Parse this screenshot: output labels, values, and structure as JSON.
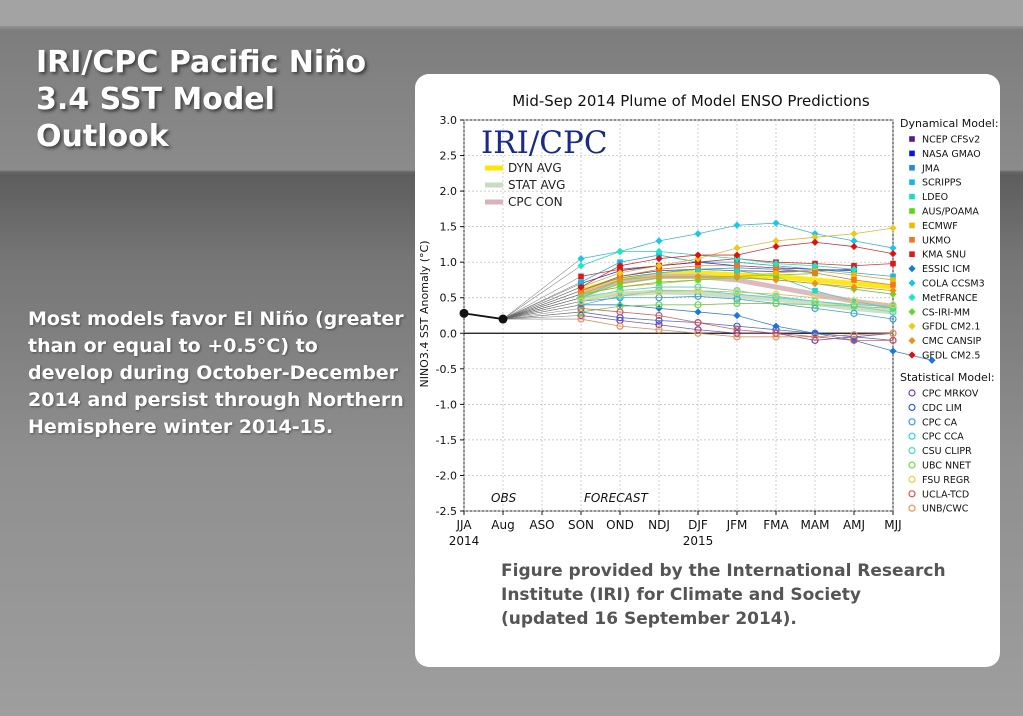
{
  "slide": {
    "title": "IRI/CPC Pacific Niño\n3.4 SST Model Outlook",
    "body": "Most models favor El Niño (greater than or equal to +0.5°C) to develop during October-December 2014 and persist through Northern Hemisphere winter 2014-15.",
    "caption": "Figure provided by the International Research\nInstitute (IRI) for Climate and Society\n(updated 16 September 2014)."
  },
  "chart_data": {
    "type": "line",
    "title": "Mid-Sep 2014 Plume of Model ENSO Predictions",
    "xlabel": "",
    "ylabel": "NINO3.4 SST Anomaly (°C)",
    "ylim": [
      -2.5,
      3.0
    ],
    "yticks": [
      "3.0",
      "2.5",
      "2.0",
      "1.5",
      "1.0",
      "0.5",
      "0.0",
      "-0.5",
      "-1.0",
      "-1.5",
      "-2.0",
      "-2.5"
    ],
    "categories": [
      "JJA",
      "Aug",
      "ASO",
      "SON",
      "OND",
      "NDJ",
      "DJF",
      "JFM",
      "FMA",
      "MAM",
      "AMJ",
      "MJJ"
    ],
    "year_labels": [
      {
        "category": "JJA",
        "label": "2014"
      },
      {
        "category": "DJF",
        "label": "2015"
      }
    ],
    "grid": true,
    "logo": "IRI/CPC",
    "annotations": {
      "obs": "OBS",
      "forecast": "FORECAST"
    },
    "observed": {
      "name": "OBS",
      "values": [
        0.28,
        0.2
      ]
    },
    "averages": [
      {
        "name": "DYN AVG",
        "color": "#ffe600",
        "values": [
          0.6,
          0.75,
          0.82,
          0.85,
          0.82,
          0.8,
          0.75,
          0.7,
          0.65
        ]
      },
      {
        "name": "STAT AVG",
        "color": "#c8dcc0",
        "values": [
          0.5,
          0.55,
          0.58,
          0.57,
          0.52,
          0.48,
          0.42,
          0.35,
          0.3
        ]
      },
      {
        "name": "CPC CON",
        "color": "#d8b4b8",
        "values": [
          0.55,
          0.72,
          0.8,
          0.8,
          0.75,
          0.65,
          0.55,
          0.45,
          0.38
        ]
      }
    ],
    "legend_dynamical_title": "Dynamical Model:",
    "legend_statistical_title": "Statistical Model:",
    "dynamical": [
      {
        "name": "NCEP CFSv2",
        "color": "#5a1a8c",
        "marker": "square",
        "values": [
          0.6,
          0.8,
          0.88,
          0.9,
          0.88,
          0.87,
          0.88,
          0.9
        ]
      },
      {
        "name": "NASA GMAO",
        "color": "#0018d8",
        "marker": "square",
        "values": [
          0.7,
          0.88,
          0.95,
          1.0,
          0.95,
          0.92,
          0.9,
          0.88
        ]
      },
      {
        "name": "JMA",
        "color": "#1e8ce6",
        "marker": "square",
        "values": [
          0.6,
          0.78,
          0.85,
          0.9,
          0.92,
          0.9,
          0.85
        ]
      },
      {
        "name": "SCRIPPS",
        "color": "#12b8e8",
        "marker": "square",
        "values": [
          0.72,
          1.0,
          1.1,
          1.0,
          1.0,
          0.95,
          0.9,
          0.85,
          0.8
        ]
      },
      {
        "name": "LDEO",
        "color": "#1ed8c8",
        "marker": "square",
        "values": [
          0.5,
          0.75,
          0.85,
          0.9,
          0.88,
          0.8,
          0.6,
          0.45,
          0.35
        ]
      },
      {
        "name": "AUS/POAMA",
        "color": "#58d818",
        "marker": "square",
        "values": [
          0.5,
          0.7,
          0.78,
          0.78,
          0.8,
          0.82,
          0.84
        ]
      },
      {
        "name": "ECMWF",
        "color": "#f0b800",
        "marker": "square",
        "values": [
          0.55,
          0.65,
          0.7,
          0.75,
          0.8,
          0.85,
          0.88,
          0.82,
          0.75
        ]
      },
      {
        "name": "UKMO",
        "color": "#f07818",
        "marker": "square",
        "values": [
          0.6,
          0.8,
          0.9,
          0.95,
          0.95,
          0.92,
          0.85,
          0.75,
          0.68
        ]
      },
      {
        "name": "KMA SNU",
        "color": "#e01818",
        "marker": "square",
        "values": [
          0.8,
          0.9,
          0.95,
          1.0,
          1.05,
          1.0,
          0.98,
          0.95,
          0.98
        ]
      },
      {
        "name": "ESSIC ICM",
        "color": "#1878e0",
        "marker": "diamond",
        "values": [
          0.4,
          0.4,
          0.35,
          0.3,
          0.25,
          0.1,
          0.0,
          -0.1,
          -0.25,
          -0.38
        ]
      },
      {
        "name": "COLA CCSM3",
        "color": "#18c8e8",
        "marker": "diamond",
        "values": [
          1.05,
          1.15,
          1.3,
          1.4,
          1.52,
          1.55,
          1.4,
          1.3,
          1.2
        ]
      },
      {
        "name": "MetFRANCE",
        "color": "#18e8c8",
        "marker": "diamond",
        "values": [
          0.95,
          1.15,
          1.15,
          1.1,
          1.05,
          0.98,
          0.95,
          0.9
        ]
      },
      {
        "name": "CS-IRI-MM",
        "color": "#60d830",
        "marker": "diamond",
        "values": [
          0.55,
          0.65,
          0.72,
          0.75,
          0.78,
          0.75,
          0.7,
          0.62,
          0.55
        ]
      },
      {
        "name": "GFDL CM2.1",
        "color": "#f0c818",
        "marker": "diamond",
        "values": [
          0.65,
          0.85,
          0.95,
          1.05,
          1.2,
          1.3,
          1.35,
          1.4,
          1.48
        ]
      },
      {
        "name": "CMC CANSIP",
        "color": "#f09018",
        "marker": "diamond",
        "values": [
          0.55,
          0.75,
          0.8,
          0.8,
          0.8,
          0.75,
          0.7,
          0.65,
          0.6
        ]
      },
      {
        "name": "GFDL CM2.5",
        "color": "#e01010",
        "marker": "diamond",
        "values": [
          0.65,
          0.95,
          1.05,
          1.1,
          1.1,
          1.22,
          1.28,
          1.22,
          1.12
        ]
      }
    ],
    "statistical": [
      {
        "name": "CPC MRKOV",
        "color": "#7a3aa8",
        "marker": "circle",
        "values": [
          0.25,
          0.18,
          0.12,
          0.05,
          0.0,
          0.0,
          -0.1,
          -0.05,
          0.0
        ]
      },
      {
        "name": "CDC LIM",
        "color": "#3060d8",
        "marker": "circle",
        "values": [
          0.3,
          0.22,
          0.18,
          0.15,
          0.1,
          0.05,
          0.0,
          -0.05,
          -0.1
        ]
      },
      {
        "name": "CPC CA",
        "color": "#30a0e0",
        "marker": "circle",
        "values": [
          0.45,
          0.5,
          0.5,
          0.52,
          0.48,
          0.42,
          0.35,
          0.28,
          0.2
        ]
      },
      {
        "name": "CPC CCA",
        "color": "#30d0e0",
        "marker": "circle",
        "values": [
          0.4,
          0.52,
          0.6,
          0.6,
          0.55,
          0.5,
          0.45,
          0.4,
          0.38
        ]
      },
      {
        "name": "CSU CLIPR",
        "color": "#40e0c0",
        "marker": "circle",
        "values": [
          0.5,
          0.6,
          0.65,
          0.65,
          0.6,
          0.52,
          0.45,
          0.38,
          0.3
        ]
      },
      {
        "name": "UBC NNET",
        "color": "#70d840",
        "marker": "circle",
        "values": [
          0.3,
          0.38,
          0.4,
          0.4,
          0.42,
          0.42,
          0.4,
          0.38,
          0.35
        ]
      },
      {
        "name": "FSU REGR",
        "color": "#f0d040",
        "marker": "circle",
        "values": [
          0.45,
          0.55,
          0.58,
          0.6,
          0.58,
          0.55,
          0.5,
          0.45,
          0.4
        ]
      },
      {
        "name": "UCLA-TCD",
        "color": "#e05050",
        "marker": "circle",
        "values": [
          0.35,
          0.3,
          0.25,
          0.15,
          0.05,
          0.0,
          -0.05,
          -0.1,
          -0.1
        ]
      },
      {
        "name": "UNB/CWC",
        "color": "#f09050",
        "marker": "circle",
        "values": [
          0.2,
          0.1,
          0.05,
          0.0,
          -0.05,
          -0.05,
          -0.05,
          -0.02,
          0.0
        ]
      }
    ]
  }
}
